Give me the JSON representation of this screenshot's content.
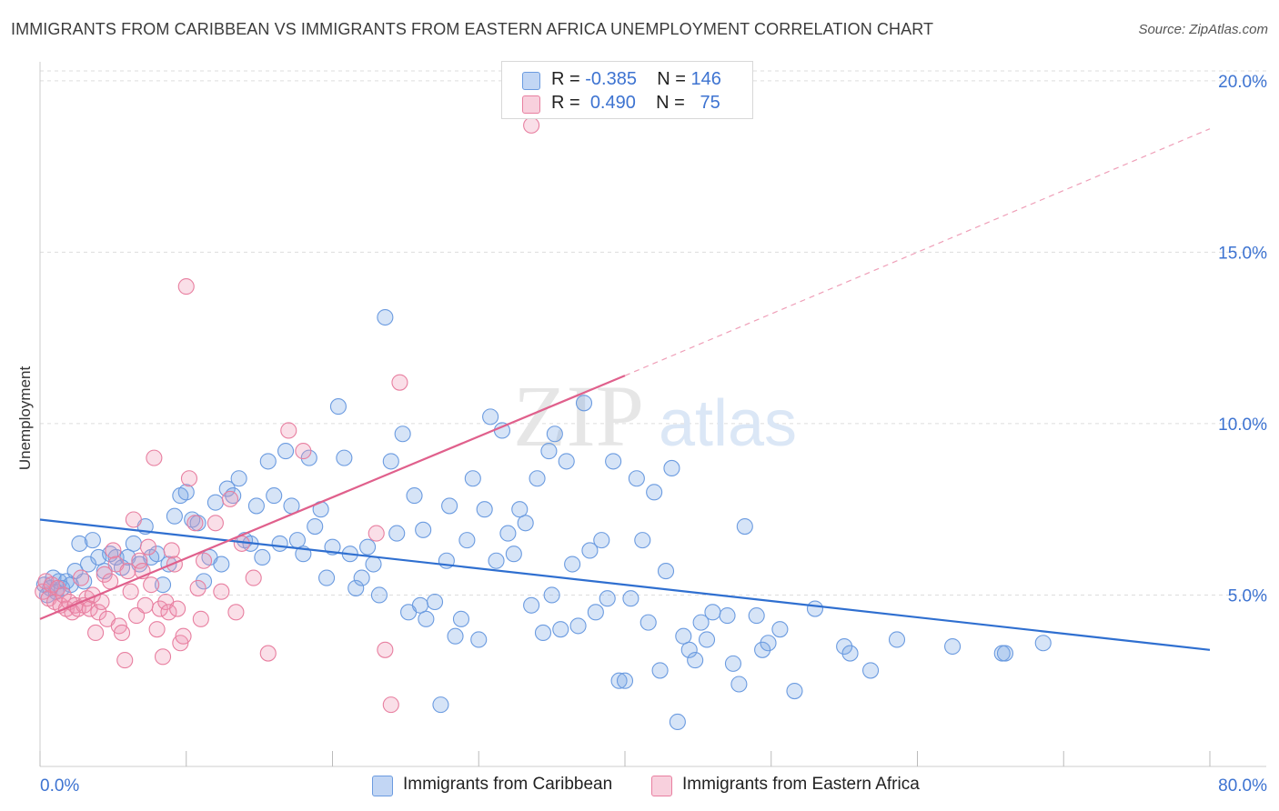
{
  "title": "IMMIGRANTS FROM CARIBBEAN VS IMMIGRANTS FROM EASTERN AFRICA UNEMPLOYMENT CORRELATION CHART",
  "source": "Source: ZipAtlas.com",
  "watermark": {
    "zip": "ZIP",
    "atlas": "atlas"
  },
  "legend": {
    "r_label": "R =",
    "n_label": "N =",
    "rows": [
      {
        "r": "-0.385",
        "n": "146"
      },
      {
        "r": "0.490",
        "n": "75"
      }
    ]
  },
  "chart_data": {
    "type": "scatter",
    "ylabel": "Unemployment",
    "xlim": [
      0,
      80
    ],
    "ylim": [
      0,
      20.5
    ],
    "x_tick_labels": [
      "0.0%",
      "80.0%"
    ],
    "y_ticks": [
      {
        "value": 5,
        "label": "5.0%"
      },
      {
        "value": 10,
        "label": "10.0%"
      },
      {
        "value": 15,
        "label": "15.0%"
      },
      {
        "value": 20,
        "label": "20.0%"
      }
    ],
    "grid": "horizontal dashed",
    "series": [
      {
        "name": "Immigrants from Caribbean",
        "color": "#6b9be0",
        "fill": "rgba(120,165,230,0.30)",
        "line_color": "#2f6fd0",
        "trend": {
          "x0": 0,
          "y0": 7.2,
          "x1": 80,
          "y1": 3.4
        },
        "points": [
          [
            0.3,
            5.3
          ],
          [
            0.5,
            5.0
          ],
          [
            0.7,
            5.2
          ],
          [
            0.9,
            5.5
          ],
          [
            1.1,
            5.1
          ],
          [
            1.3,
            5.4
          ],
          [
            1.5,
            5.2
          ],
          [
            1.8,
            5.4
          ],
          [
            2.1,
            5.3
          ],
          [
            2.4,
            5.7
          ],
          [
            2.7,
            6.5
          ],
          [
            3.0,
            5.4
          ],
          [
            3.3,
            5.9
          ],
          [
            3.6,
            6.6
          ],
          [
            4.0,
            6.1
          ],
          [
            4.4,
            5.7
          ],
          [
            4.8,
            6.2
          ],
          [
            5.2,
            6.1
          ],
          [
            5.6,
            5.8
          ],
          [
            6.0,
            6.1
          ],
          [
            6.4,
            6.5
          ],
          [
            6.8,
            5.9
          ],
          [
            7.2,
            7.0
          ],
          [
            7.6,
            6.1
          ],
          [
            8.0,
            6.2
          ],
          [
            8.4,
            5.3
          ],
          [
            8.8,
            5.9
          ],
          [
            9.2,
            7.3
          ],
          [
            9.6,
            7.9
          ],
          [
            10.0,
            8.0
          ],
          [
            10.4,
            7.2
          ],
          [
            10.8,
            7.1
          ],
          [
            11.2,
            5.4
          ],
          [
            11.6,
            6.1
          ],
          [
            12.0,
            7.7
          ],
          [
            12.4,
            5.9
          ],
          [
            12.8,
            8.1
          ],
          [
            13.2,
            7.9
          ],
          [
            13.6,
            8.4
          ],
          [
            14.0,
            6.6
          ],
          [
            14.4,
            6.5
          ],
          [
            14.8,
            7.6
          ],
          [
            15.2,
            6.1
          ],
          [
            15.6,
            8.9
          ],
          [
            16.0,
            7.9
          ],
          [
            16.4,
            6.5
          ],
          [
            16.8,
            9.2
          ],
          [
            17.2,
            7.6
          ],
          [
            17.6,
            6.6
          ],
          [
            18.0,
            6.2
          ],
          [
            18.4,
            9.0
          ],
          [
            18.8,
            7.0
          ],
          [
            19.2,
            7.5
          ],
          [
            19.6,
            5.5
          ],
          [
            20.0,
            6.4
          ],
          [
            20.4,
            10.5
          ],
          [
            20.8,
            9.0
          ],
          [
            21.2,
            6.2
          ],
          [
            21.6,
            5.2
          ],
          [
            22.0,
            5.5
          ],
          [
            22.4,
            6.4
          ],
          [
            22.8,
            5.9
          ],
          [
            23.2,
            5.0
          ],
          [
            23.6,
            13.1
          ],
          [
            24.0,
            8.9
          ],
          [
            24.4,
            6.8
          ],
          [
            24.8,
            9.7
          ],
          [
            25.2,
            4.5
          ],
          [
            25.6,
            7.9
          ],
          [
            26.0,
            4.7
          ],
          [
            26.2,
            6.9
          ],
          [
            26.4,
            4.3
          ],
          [
            27.0,
            4.8
          ],
          [
            27.4,
            1.8
          ],
          [
            27.8,
            6.0
          ],
          [
            28.0,
            7.6
          ],
          [
            28.4,
            3.8
          ],
          [
            28.8,
            4.3
          ],
          [
            29.2,
            6.6
          ],
          [
            29.6,
            8.4
          ],
          [
            30.0,
            3.7
          ],
          [
            30.4,
            7.5
          ],
          [
            30.8,
            10.2
          ],
          [
            31.2,
            6.0
          ],
          [
            31.6,
            9.8
          ],
          [
            32.0,
            6.8
          ],
          [
            32.4,
            6.2
          ],
          [
            32.8,
            7.5
          ],
          [
            33.2,
            7.1
          ],
          [
            33.6,
            4.7
          ],
          [
            34.0,
            8.4
          ],
          [
            34.4,
            3.9
          ],
          [
            34.8,
            9.2
          ],
          [
            35.0,
            5.0
          ],
          [
            35.2,
            9.7
          ],
          [
            35.6,
            4.0
          ],
          [
            36.0,
            8.9
          ],
          [
            36.4,
            5.9
          ],
          [
            36.8,
            4.1
          ],
          [
            37.2,
            10.6
          ],
          [
            37.6,
            6.3
          ],
          [
            38.0,
            4.5
          ],
          [
            38.4,
            6.6
          ],
          [
            38.8,
            4.9
          ],
          [
            39.2,
            8.9
          ],
          [
            39.6,
            2.5
          ],
          [
            40.0,
            2.5
          ],
          [
            40.4,
            4.9
          ],
          [
            40.8,
            8.4
          ],
          [
            41.2,
            6.6
          ],
          [
            41.6,
            4.2
          ],
          [
            42.0,
            8.0
          ],
          [
            42.4,
            2.8
          ],
          [
            42.8,
            5.7
          ],
          [
            43.2,
            8.7
          ],
          [
            43.6,
            1.3
          ],
          [
            44.0,
            3.8
          ],
          [
            44.4,
            3.4
          ],
          [
            44.8,
            3.1
          ],
          [
            45.2,
            4.2
          ],
          [
            45.6,
            3.7
          ],
          [
            46.0,
            4.5
          ],
          [
            47.0,
            4.4
          ],
          [
            47.4,
            3.0
          ],
          [
            47.8,
            2.4
          ],
          [
            48.2,
            7.0
          ],
          [
            49.0,
            4.4
          ],
          [
            49.4,
            3.4
          ],
          [
            49.8,
            3.6
          ],
          [
            50.6,
            4.0
          ],
          [
            51.6,
            2.2
          ],
          [
            53.0,
            4.6
          ],
          [
            55.0,
            3.5
          ],
          [
            55.4,
            3.3
          ],
          [
            56.8,
            2.8
          ],
          [
            58.6,
            3.7
          ],
          [
            62.4,
            3.5
          ],
          [
            65.8,
            3.3
          ],
          [
            66.0,
            3.3
          ],
          [
            68.6,
            3.6
          ]
        ]
      },
      {
        "name": "Immigrants from Eastern Africa",
        "color": "#e87fa0",
        "fill": "rgba(240,150,180,0.30)",
        "line_color": "#e0608c",
        "trend": {
          "x0": 0,
          "y0": 4.3,
          "x1": 40,
          "y1": 11.4
        },
        "trend_extension": {
          "x0": 40,
          "y0": 11.4,
          "x1": 80,
          "y1": 18.6
        },
        "points": [
          [
            0.2,
            5.1
          ],
          [
            0.4,
            5.4
          ],
          [
            0.6,
            4.9
          ],
          [
            0.8,
            5.3
          ],
          [
            1.0,
            4.8
          ],
          [
            1.2,
            5.2
          ],
          [
            1.4,
            4.7
          ],
          [
            1.6,
            5.0
          ],
          [
            1.8,
            4.6
          ],
          [
            2.0,
            4.8
          ],
          [
            2.2,
            4.5
          ],
          [
            2.4,
            4.7
          ],
          [
            2.6,
            4.6
          ],
          [
            2.8,
            5.5
          ],
          [
            3.0,
            4.7
          ],
          [
            3.2,
            4.9
          ],
          [
            3.4,
            4.6
          ],
          [
            3.6,
            5.0
          ],
          [
            3.8,
            3.9
          ],
          [
            4.0,
            4.5
          ],
          [
            4.2,
            4.8
          ],
          [
            4.4,
            5.6
          ],
          [
            4.6,
            4.3
          ],
          [
            4.8,
            5.4
          ],
          [
            5.0,
            6.3
          ],
          [
            5.2,
            5.9
          ],
          [
            5.4,
            4.1
          ],
          [
            5.6,
            3.9
          ],
          [
            5.8,
            3.1
          ],
          [
            6.0,
            5.7
          ],
          [
            6.2,
            5.1
          ],
          [
            6.4,
            7.2
          ],
          [
            6.6,
            4.4
          ],
          [
            6.8,
            6.0
          ],
          [
            7.0,
            5.7
          ],
          [
            7.2,
            4.7
          ],
          [
            7.4,
            6.4
          ],
          [
            7.6,
            5.3
          ],
          [
            7.8,
            9.0
          ],
          [
            8.0,
            4.0
          ],
          [
            8.2,
            4.6
          ],
          [
            8.4,
            3.2
          ],
          [
            8.6,
            4.8
          ],
          [
            8.8,
            4.5
          ],
          [
            9.0,
            6.3
          ],
          [
            9.2,
            5.9
          ],
          [
            9.4,
            4.6
          ],
          [
            9.6,
            3.6
          ],
          [
            9.8,
            3.8
          ],
          [
            10.0,
            14.0
          ],
          [
            10.2,
            8.4
          ],
          [
            10.6,
            7.1
          ],
          [
            10.8,
            5.2
          ],
          [
            11.0,
            4.3
          ],
          [
            11.2,
            6.0
          ],
          [
            12.0,
            7.1
          ],
          [
            12.4,
            5.1
          ],
          [
            13.0,
            7.8
          ],
          [
            13.4,
            4.5
          ],
          [
            13.8,
            6.5
          ],
          [
            14.6,
            5.5
          ],
          [
            15.6,
            3.3
          ],
          [
            17.0,
            9.8
          ],
          [
            18.0,
            9.2
          ],
          [
            23.0,
            6.8
          ],
          [
            23.6,
            3.4
          ],
          [
            24.0,
            1.8
          ],
          [
            24.6,
            11.2
          ],
          [
            33.6,
            18.7
          ]
        ]
      }
    ]
  },
  "bottom_legend": [
    {
      "label": "Immigrants from Caribbean"
    },
    {
      "label": "Immigrants from Eastern Africa"
    }
  ]
}
